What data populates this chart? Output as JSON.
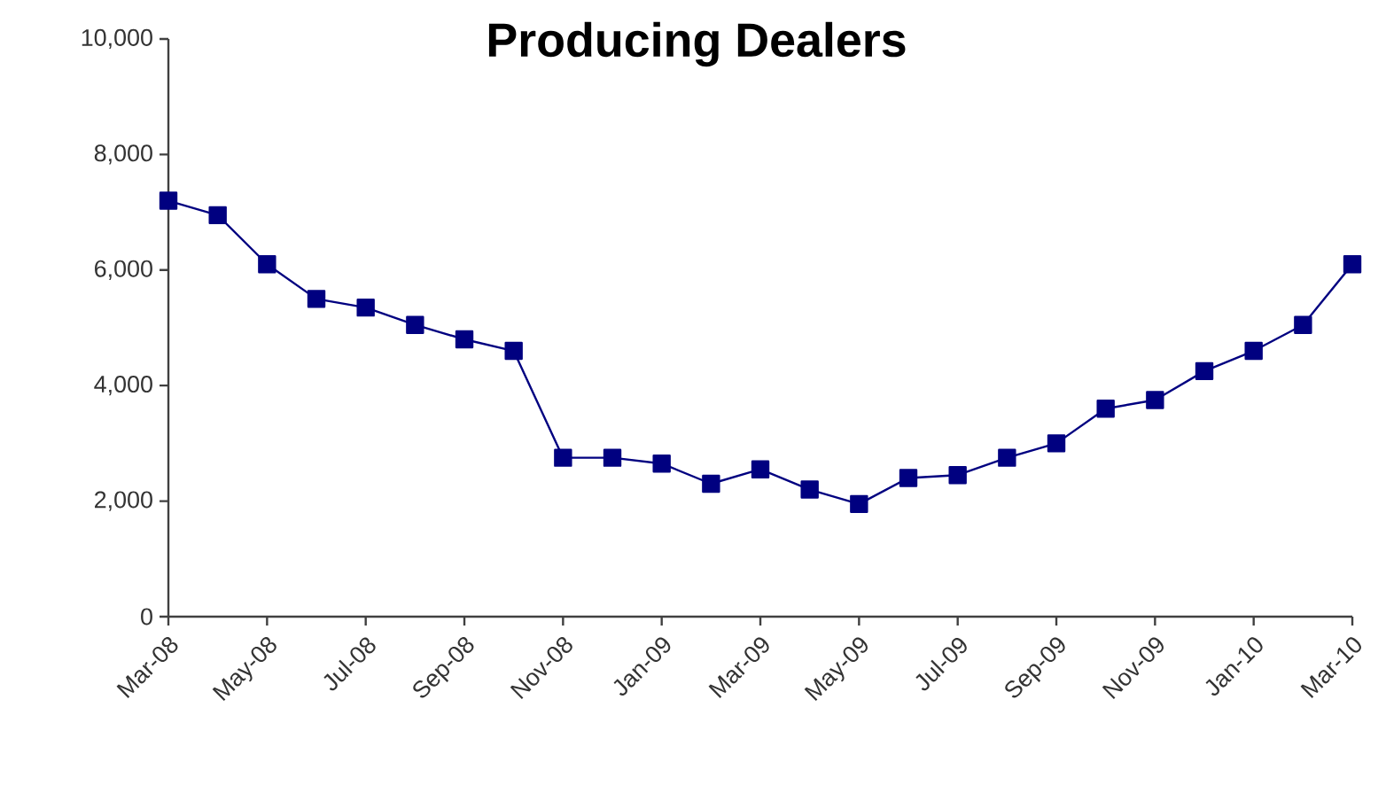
{
  "chart_data": {
    "type": "line",
    "title": "Producing Dealers",
    "categories": [
      "Mar-08",
      null,
      "May-08",
      null,
      "Jul-08",
      null,
      "Sep-08",
      null,
      "Nov-08",
      null,
      "Jan-09",
      null,
      "Mar-09",
      null,
      "May-09",
      null,
      "Jul-09",
      null,
      "Sep-09",
      null,
      "Nov-09",
      null,
      "Jan-10",
      null,
      "Mar-10"
    ],
    "series": [
      {
        "color": "#000080",
        "values": [
          7200,
          6950,
          6100,
          5500,
          5350,
          5050,
          4800,
          4600,
          2750,
          2750,
          2650,
          2300,
          2550,
          2200,
          1950,
          2400,
          2450,
          2750,
          3000,
          3600,
          3750,
          4250,
          4600,
          5050,
          6100
        ]
      }
    ],
    "ylim": [
      0,
      10000
    ],
    "yticks": [
      {
        "value": 0,
        "label": "0"
      },
      {
        "value": 2000,
        "label": "2,000"
      },
      {
        "value": 4000,
        "label": "4,000"
      },
      {
        "value": 6000,
        "label": "6,000"
      },
      {
        "value": 8000,
        "label": "8,000"
      },
      {
        "value": 10000,
        "label": "10,000"
      }
    ],
    "marker": "square",
    "grid": false
  }
}
